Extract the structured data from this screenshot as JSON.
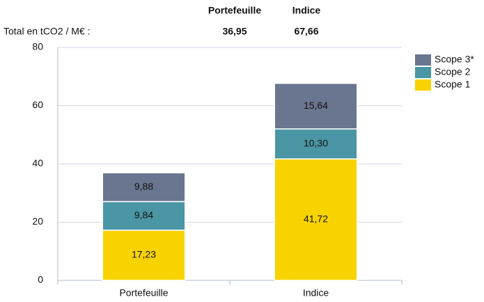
{
  "summary": {
    "label": "Total en tCO2 / M€ :",
    "headers": [
      "Portefeuille",
      "Indice"
    ],
    "values": [
      "36,95",
      "67,66"
    ]
  },
  "chart_data": {
    "type": "stacked_bar",
    "categories": [
      "Portefeuille",
      "Indice"
    ],
    "series": [
      {
        "name": "Scope 1",
        "color": "#f9d300",
        "values": [
          17.23,
          41.72
        ],
        "value_labels": [
          "17,23",
          "41,72"
        ]
      },
      {
        "name": "Scope 2",
        "color": "#4a96a4",
        "values": [
          9.84,
          10.3
        ],
        "value_labels": [
          "9,84",
          "10,30"
        ]
      },
      {
        "name": "Scope 3*",
        "color": "#6a7590",
        "values": [
          9.88,
          15.64
        ],
        "value_labels": [
          "9,88",
          "15,64"
        ]
      }
    ],
    "ylim": [
      0,
      80
    ],
    "yticks": [
      0,
      20,
      40,
      60,
      80
    ],
    "grid": true,
    "legend": "upper right"
  }
}
